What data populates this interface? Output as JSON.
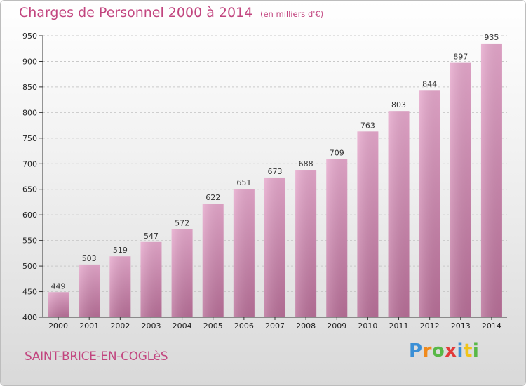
{
  "chart_data": {
    "type": "bar",
    "title": "Charges de Personnel 2000 à 2014",
    "subtitle": "(en milliers d'€)",
    "categories": [
      "2000",
      "2001",
      "2002",
      "2003",
      "2004",
      "2005",
      "2006",
      "2007",
      "2008",
      "2009",
      "2010",
      "2011",
      "2012",
      "2013",
      "2014"
    ],
    "values": [
      449,
      503,
      519,
      547,
      572,
      622,
      651,
      673,
      688,
      709,
      763,
      803,
      844,
      897,
      935
    ],
    "ylim": [
      400,
      950
    ],
    "yticks": [
      400,
      450,
      500,
      550,
      600,
      650,
      700,
      750,
      800,
      850,
      900,
      950
    ],
    "xlabel": "",
    "ylabel": "",
    "grid": true,
    "bar_color": "#d98ab6"
  },
  "commune": "SAINT-BRICE-EN-COGLèS",
  "logo": {
    "text": "Proxiti",
    "letters": [
      "P",
      "r",
      "o",
      "x",
      "i",
      "t",
      "i"
    ],
    "colors": [
      "#3a8fd6",
      "#f08a1c",
      "#58b847",
      "#e23a3a",
      "#3a8fd6",
      "#f0c419",
      "#58b847"
    ]
  }
}
